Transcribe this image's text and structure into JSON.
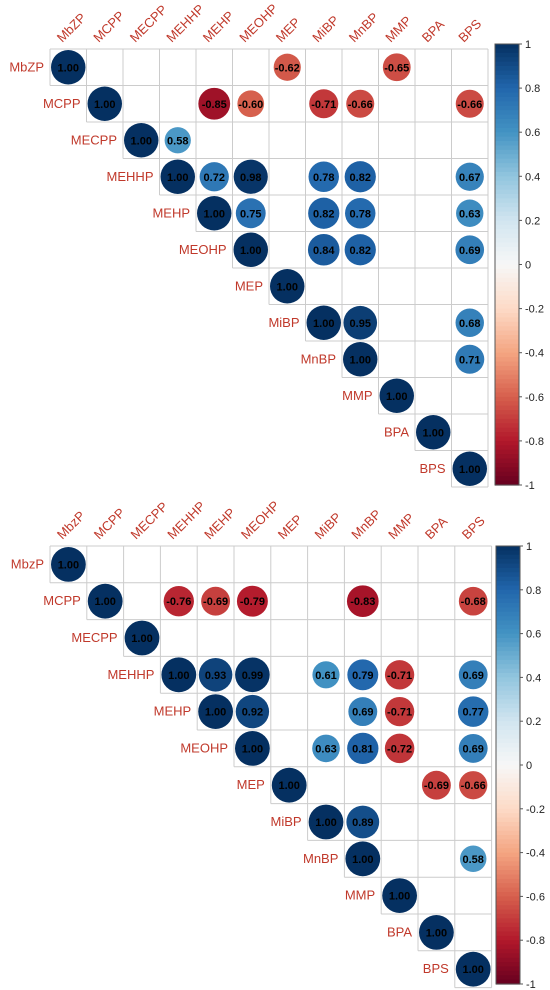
{
  "chart_data": [
    {
      "type": "heatmap",
      "variables": [
        "MbZP",
        "MCPP",
        "MECPP",
        "MEHHP",
        "MEHP",
        "MEOHP",
        "MEP",
        "MiBP",
        "MnBP",
        "MMP",
        "BPA",
        "BPS"
      ],
      "cells": [
        [
          0,
          0,
          1.0
        ],
        [
          0,
          6,
          -0.62
        ],
        [
          0,
          9,
          -0.65
        ],
        [
          1,
          1,
          1.0
        ],
        [
          1,
          4,
          -0.85
        ],
        [
          1,
          5,
          -0.6
        ],
        [
          1,
          7,
          -0.71
        ],
        [
          1,
          8,
          -0.66
        ],
        [
          1,
          11,
          -0.66
        ],
        [
          2,
          2,
          1.0
        ],
        [
          2,
          3,
          0.58
        ],
        [
          3,
          3,
          1.0
        ],
        [
          3,
          4,
          0.72
        ],
        [
          3,
          5,
          0.98
        ],
        [
          3,
          7,
          0.78
        ],
        [
          3,
          8,
          0.82
        ],
        [
          3,
          11,
          0.67
        ],
        [
          4,
          4,
          1.0
        ],
        [
          4,
          5,
          0.75
        ],
        [
          4,
          7,
          0.82
        ],
        [
          4,
          8,
          0.78
        ],
        [
          4,
          11,
          0.63
        ],
        [
          5,
          5,
          1.0
        ],
        [
          5,
          7,
          0.84
        ],
        [
          5,
          8,
          0.82
        ],
        [
          5,
          11,
          0.69
        ],
        [
          6,
          6,
          1.0
        ],
        [
          7,
          7,
          1.0
        ],
        [
          7,
          8,
          0.95
        ],
        [
          7,
          11,
          0.68
        ],
        [
          8,
          8,
          1.0
        ],
        [
          8,
          11,
          0.71
        ],
        [
          9,
          9,
          1.0
        ],
        [
          10,
          10,
          1.0
        ],
        [
          11,
          11,
          1.0
        ]
      ],
      "colorbar": {
        "ticks": [
          "1",
          "0.8",
          "0.6",
          "0.4",
          "0.2",
          "0",
          "-0.2",
          "-0.4",
          "-0.6",
          "-0.8",
          "-1"
        ],
        "range": [
          -1,
          1
        ]
      }
    },
    {
      "type": "heatmap",
      "variables": [
        "MbzP",
        "MCPP",
        "MECPP",
        "MEHHP",
        "MEHP",
        "MEOHP",
        "MEP",
        "MiBP",
        "MnBP",
        "MMP",
        "BPA",
        "BPS"
      ],
      "cells": [
        [
          0,
          0,
          1.0
        ],
        [
          1,
          1,
          1.0
        ],
        [
          1,
          3,
          -0.76
        ],
        [
          1,
          4,
          -0.69
        ],
        [
          1,
          5,
          -0.79
        ],
        [
          1,
          8,
          -0.83
        ],
        [
          1,
          11,
          -0.68
        ],
        [
          2,
          2,
          1.0
        ],
        [
          3,
          3,
          1.0
        ],
        [
          3,
          4,
          0.93
        ],
        [
          3,
          5,
          0.99
        ],
        [
          3,
          7,
          0.61
        ],
        [
          3,
          8,
          0.79
        ],
        [
          3,
          9,
          -0.71
        ],
        [
          3,
          11,
          0.69
        ],
        [
          4,
          4,
          1.0
        ],
        [
          4,
          5,
          0.92
        ],
        [
          4,
          8,
          0.69
        ],
        [
          4,
          9,
          -0.71
        ],
        [
          4,
          11,
          0.77
        ],
        [
          5,
          5,
          1.0
        ],
        [
          5,
          7,
          0.63
        ],
        [
          5,
          8,
          0.81
        ],
        [
          5,
          9,
          -0.72
        ],
        [
          5,
          11,
          0.69
        ],
        [
          6,
          6,
          1.0
        ],
        [
          6,
          10,
          -0.69
        ],
        [
          6,
          11,
          -0.66
        ],
        [
          7,
          7,
          1.0
        ],
        [
          7,
          8,
          0.89
        ],
        [
          8,
          8,
          1.0
        ],
        [
          8,
          11,
          0.58
        ],
        [
          9,
          9,
          1.0
        ],
        [
          10,
          10,
          1.0
        ],
        [
          11,
          11,
          1.0
        ]
      ],
      "colorbar": {
        "ticks": [
          "1",
          "0.8",
          "0.6",
          "0.4",
          "0.2",
          "0",
          "-0.2",
          "-0.4",
          "-0.6",
          "-0.8",
          "-1"
        ],
        "range": [
          -1,
          1
        ]
      }
    }
  ],
  "colors": {
    "negative": "#67001f",
    "neutral": "#f7f7f7",
    "positive": "#053061",
    "label": "#c0392b"
  }
}
